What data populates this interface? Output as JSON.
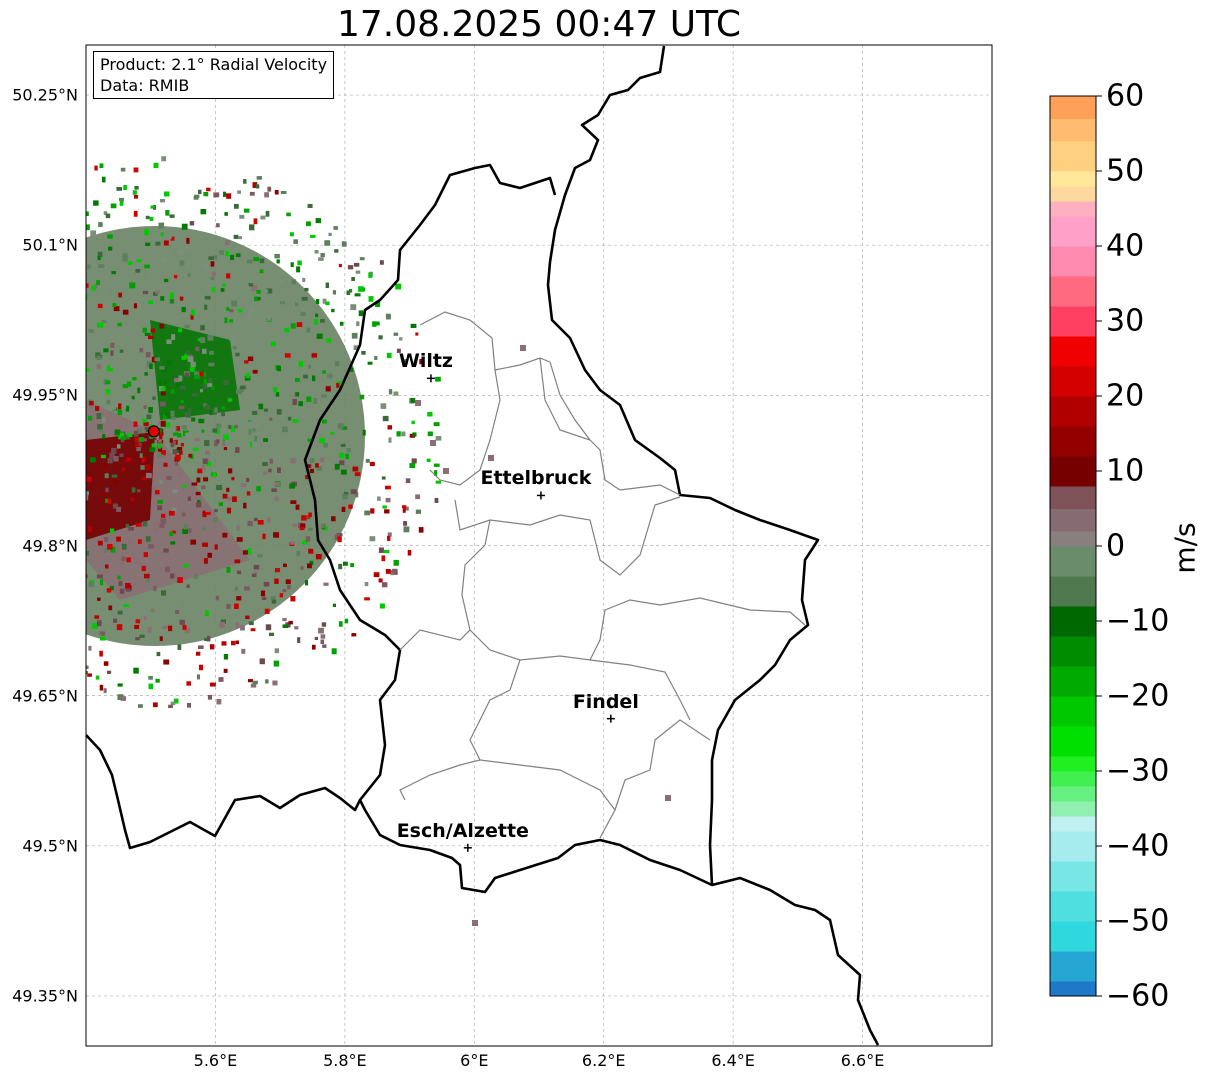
{
  "title": "17.08.2025 00:47 UTC",
  "info": {
    "product": "Product: 2.1° Radial Velocity",
    "data": "Data: RMIB"
  },
  "lat_ticks": [
    {
      "value": 50.25,
      "label": "50.25°N"
    },
    {
      "value": 50.1,
      "label": "50.1°N"
    },
    {
      "value": 49.95,
      "label": "49.95°N"
    },
    {
      "value": 49.8,
      "label": "49.8°N"
    },
    {
      "value": 49.65,
      "label": "49.65°N"
    },
    {
      "value": 49.5,
      "label": "49.5°N"
    },
    {
      "value": 49.35,
      "label": "49.35°N"
    }
  ],
  "lon_ticks": [
    {
      "value": 5.6,
      "label": "5.6°E"
    },
    {
      "value": 5.8,
      "label": "5.8°E"
    },
    {
      "value": 6.0,
      "label": "6°E"
    },
    {
      "value": 6.2,
      "label": "6.2°E"
    },
    {
      "value": 6.4,
      "label": "6.4°E"
    },
    {
      "value": 6.6,
      "label": "6.6°E"
    }
  ],
  "map_extent": {
    "lon_min": 5.4,
    "lon_max": 6.8,
    "lat_min": 49.3,
    "lat_max": 50.3
  },
  "cities": [
    {
      "name": "Wiltz",
      "lon": 5.933,
      "lat": 49.967
    },
    {
      "name": "Ettelbruck",
      "lon": 6.103,
      "lat": 49.85
    },
    {
      "name": "Findel",
      "lon": 6.211,
      "lat": 49.627
    },
    {
      "name": "Esch/Alzette",
      "lon": 5.99,
      "lat": 49.498
    }
  ],
  "radar_site": {
    "lon": 5.505,
    "lat": 49.914
  },
  "colorbar": {
    "label": "m/s",
    "min": -60,
    "max": 60,
    "ticks": [
      {
        "value": 60,
        "label": "60"
      },
      {
        "value": 50,
        "label": "50"
      },
      {
        "value": 40,
        "label": "40"
      },
      {
        "value": 30,
        "label": "30"
      },
      {
        "value": 20,
        "label": "20"
      },
      {
        "value": 10,
        "label": "10"
      },
      {
        "value": 0,
        "label": "0"
      },
      {
        "value": -10,
        "label": "−10"
      },
      {
        "value": -20,
        "label": "−20"
      },
      {
        "value": -30,
        "label": "−30"
      },
      {
        "value": -40,
        "label": "−40"
      },
      {
        "value": -50,
        "label": "−50"
      },
      {
        "value": -60,
        "label": "−60"
      }
    ],
    "stops": [
      {
        "from": -60,
        "to": -58,
        "color": "#1f78c8"
      },
      {
        "from": -58,
        "to": -54,
        "color": "#26a6d2"
      },
      {
        "from": -54,
        "to": -50,
        "color": "#2ed8dc"
      },
      {
        "from": -50,
        "to": -46,
        "color": "#4fdfe0"
      },
      {
        "from": -46,
        "to": -42,
        "color": "#79e6e6"
      },
      {
        "from": -42,
        "to": -38,
        "color": "#a6ecee"
      },
      {
        "from": -38,
        "to": -36,
        "color": "#c0f0f0"
      },
      {
        "from": -36,
        "to": -34,
        "color": "#90f0b0"
      },
      {
        "from": -34,
        "to": -32,
        "color": "#66f080"
      },
      {
        "from": -32,
        "to": -30,
        "color": "#40f050"
      },
      {
        "from": -30,
        "to": -28,
        "color": "#20f020"
      },
      {
        "from": -28,
        "to": -24,
        "color": "#00e000"
      },
      {
        "from": -24,
        "to": -20,
        "color": "#00c800"
      },
      {
        "from": -20,
        "to": -16,
        "color": "#00aa00"
      },
      {
        "from": -16,
        "to": -12,
        "color": "#008c00"
      },
      {
        "from": -12,
        "to": -8,
        "color": "#006800"
      },
      {
        "from": -8,
        "to": -4,
        "color": "#4f7a4f"
      },
      {
        "from": -4,
        "to": 0,
        "color": "#6a8c6a"
      },
      {
        "from": 0,
        "to": 2,
        "color": "#8a7f7f"
      },
      {
        "from": 2,
        "to": 5,
        "color": "#866b73"
      },
      {
        "from": 5,
        "to": 8,
        "color": "#7f525a"
      },
      {
        "from": 8,
        "to": 12,
        "color": "#760000"
      },
      {
        "from": 12,
        "to": 16,
        "color": "#940000"
      },
      {
        "from": 16,
        "to": 20,
        "color": "#b00000"
      },
      {
        "from": 20,
        "to": 24,
        "color": "#d40000"
      },
      {
        "from": 24,
        "to": 28,
        "color": "#f00000"
      },
      {
        "from": 28,
        "to": 32,
        "color": "#ff4060"
      },
      {
        "from": 32,
        "to": 36,
        "color": "#ff6a80"
      },
      {
        "from": 36,
        "to": 40,
        "color": "#ff8ab0"
      },
      {
        "from": 40,
        "to": 44,
        "color": "#ffa0c8"
      },
      {
        "from": 44,
        "to": 46,
        "color": "#ffb0c0"
      },
      {
        "from": 46,
        "to": 48,
        "color": "#ffd8a0"
      },
      {
        "from": 48,
        "to": 50,
        "color": "#ffe89a"
      },
      {
        "from": 50,
        "to": 54,
        "color": "#ffd080"
      },
      {
        "from": 54,
        "to": 57,
        "color": "#ffbc70"
      },
      {
        "from": 57,
        "to": 60,
        "color": "#ffa058"
      }
    ]
  }
}
